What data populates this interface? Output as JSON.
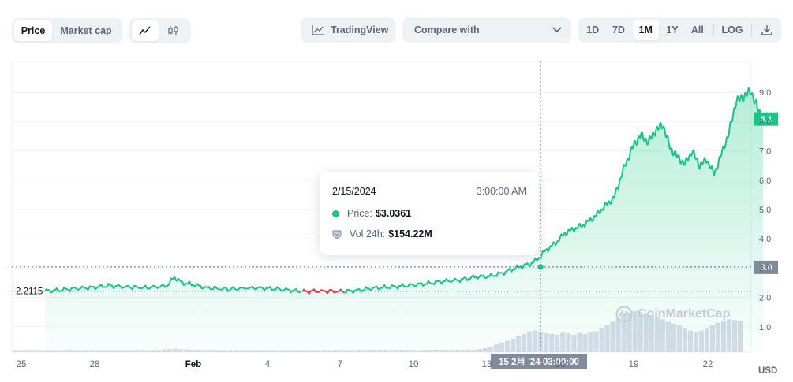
{
  "toolbar": {
    "price_label": "Price",
    "market_cap_label": "Market cap",
    "tradingview_label": "TradingView",
    "compare_label": "Compare with",
    "ranges": [
      "1D",
      "7D",
      "1M",
      "1Y",
      "All"
    ],
    "active_range": "1M",
    "log_label": "LOG"
  },
  "tooltip": {
    "date": "2/15/2024",
    "time": "3:00:00 AM",
    "price_label": "Price:",
    "price_value": "$3.0361",
    "vol_label": "Vol 24h:",
    "vol_value": "$154.22M"
  },
  "crosshair_label": "15 2月 '24  03:00:00",
  "watermark": "CoinMarketCap",
  "colors": {
    "up": "#16c784",
    "down": "#ea3943",
    "axis_text": "#58667e",
    "badge_dark": "#808a9d"
  },
  "chart_data": {
    "type": "area",
    "ylim": [
      0,
      10
    ],
    "y_ticks": [
      "1.0",
      "2.0",
      "3.0",
      "4.0",
      "5.0",
      "6.0",
      "7.0",
      "8.0",
      "9.0"
    ],
    "x_ticks": [
      "25",
      "28",
      "Feb",
      "4",
      "7",
      "10",
      "13",
      "16",
      "19",
      "22"
    ],
    "unit_label": "USD",
    "start_price_label": "2.2115",
    "current_price_label": "8.1",
    "crosshair_price_label": "3.0",
    "price_series": [
      [
        0.0,
        2.22
      ],
      [
        0.6,
        2.25
      ],
      [
        1.2,
        2.3
      ],
      [
        2.0,
        2.34
      ],
      [
        2.6,
        2.4
      ],
      [
        3.3,
        2.36
      ],
      [
        4.2,
        2.33
      ],
      [
        5.0,
        2.4
      ],
      [
        5.3,
        2.7
      ],
      [
        5.6,
        2.5
      ],
      [
        6.0,
        2.45
      ],
      [
        6.6,
        2.33
      ],
      [
        7.5,
        2.28
      ],
      [
        8.5,
        2.33
      ],
      [
        9.3,
        2.3
      ],
      [
        10.0,
        2.25
      ],
      [
        10.6,
        2.2
      ],
      [
        11.3,
        2.22
      ],
      [
        12.2,
        2.2
      ],
      [
        12.8,
        2.24
      ],
      [
        13.5,
        2.32
      ],
      [
        14.3,
        2.36
      ],
      [
        15.0,
        2.42
      ],
      [
        15.7,
        2.48
      ],
      [
        16.3,
        2.55
      ],
      [
        17.0,
        2.6
      ],
      [
        17.6,
        2.7
      ],
      [
        18.2,
        2.72
      ],
      [
        18.8,
        2.85
      ],
      [
        19.4,
        3.04
      ],
      [
        19.8,
        3.12
      ],
      [
        20.1,
        3.25
      ],
      [
        20.5,
        3.6
      ],
      [
        20.9,
        3.85
      ],
      [
        21.3,
        4.2
      ],
      [
        21.7,
        4.35
      ],
      [
        22.1,
        4.5
      ],
      [
        22.5,
        4.75
      ],
      [
        22.9,
        5.1
      ],
      [
        23.3,
        5.4
      ],
      [
        23.7,
        6.4
      ],
      [
        24.1,
        7.2
      ],
      [
        24.4,
        7.55
      ],
      [
        24.7,
        7.3
      ],
      [
        25.0,
        7.7
      ],
      [
        25.3,
        7.9
      ],
      [
        25.6,
        7.1
      ],
      [
        25.9,
        6.8
      ],
      [
        26.2,
        6.55
      ],
      [
        26.5,
        7.0
      ],
      [
        26.8,
        6.5
      ],
      [
        27.1,
        6.7
      ],
      [
        27.4,
        6.2
      ],
      [
        27.7,
        6.9
      ],
      [
        28.0,
        7.6
      ],
      [
        28.3,
        8.7
      ],
      [
        28.6,
        8.85
      ],
      [
        28.9,
        9.05
      ],
      [
        29.2,
        8.4
      ],
      [
        29.4,
        8.1
      ]
    ],
    "down_segment": [
      10.5,
      12.2
    ],
    "volume_series": [
      0.03,
      0.03,
      0.03,
      0.04,
      0.03,
      0.03,
      0.03,
      0.03,
      0.03,
      0.03,
      0.04,
      0.03,
      0.03,
      0.03,
      0.03,
      0.03,
      0.03,
      0.03,
      0.03,
      0.03,
      0.03,
      0.03,
      0.04,
      0.03,
      0.03,
      0.03,
      0.05,
      0.06,
      0.07,
      0.08,
      0.07,
      0.06,
      0.04,
      0.04,
      0.03,
      0.04,
      0.03,
      0.03,
      0.03,
      0.03,
      0.03,
      0.03,
      0.03,
      0.03,
      0.03,
      0.03,
      0.03,
      0.03,
      0.03,
      0.03,
      0.03,
      0.03,
      0.03,
      0.03,
      0.03,
      0.03,
      0.03,
      0.03,
      0.04,
      0.03,
      0.03,
      0.03,
      0.04,
      0.03,
      0.04,
      0.04,
      0.04,
      0.04,
      0.03,
      0.04,
      0.04,
      0.04,
      0.04,
      0.03,
      0.04,
      0.04,
      0.05,
      0.04,
      0.04,
      0.04,
      0.05,
      0.05,
      0.06,
      0.05,
      0.07,
      0.09,
      0.12,
      0.18,
      0.22,
      0.26,
      0.3,
      0.38,
      0.42,
      0.48,
      0.5,
      0.46,
      0.44,
      0.42,
      0.4,
      0.45,
      0.43,
      0.4,
      0.44,
      0.42,
      0.46,
      0.48,
      0.55,
      0.62,
      0.7,
      0.78,
      0.86,
      0.9,
      0.95,
      0.92,
      0.88,
      0.85,
      0.8,
      0.76,
      0.7,
      0.66,
      0.62,
      0.55,
      0.5,
      0.46,
      0.5,
      0.56,
      0.62,
      0.68,
      0.72,
      0.76,
      0.74,
      0.72
    ]
  }
}
